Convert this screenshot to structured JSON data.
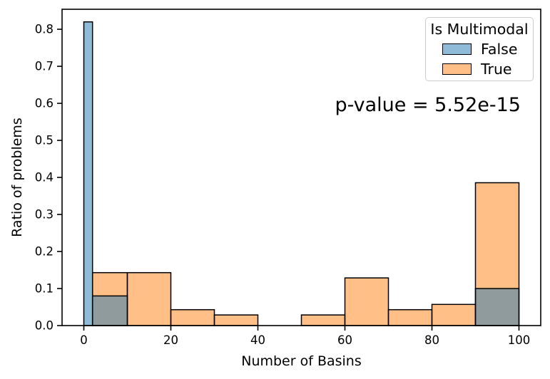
{
  "figure": {
    "ylabel": "Ratio of problems",
    "xlabel": "Number of Basins",
    "annotation": "p-value = 5.52e-15",
    "legend": {
      "title": "Is Multimodal",
      "entries": [
        {
          "label": "False",
          "color": "#8fbbd9"
        },
        {
          "label": "True",
          "color": "#ffbf86"
        }
      ]
    }
  },
  "chart_data": {
    "type": "bar",
    "subtype": "overlaid-histogram",
    "title": "",
    "xlabel": "Number of Basins",
    "ylabel": "Ratio of problems",
    "annotation": "p-value = 5.52e-15",
    "bin_edges": [
      0,
      2,
      10,
      20,
      30,
      40,
      50,
      60,
      70,
      80,
      90,
      100
    ],
    "series": [
      {
        "name": "False",
        "color_fill": "rgba(31,119,180,0.5)",
        "color_hex": "#8fbbd9",
        "values": [
          0.82,
          0.08,
          0,
          0,
          0,
          0,
          0,
          0,
          0,
          0,
          0.1
        ]
      },
      {
        "name": "True",
        "color_fill": "rgba(255,127,14,0.5)",
        "color_hex": "#ffbf86",
        "values": [
          0,
          0.1429,
          0.1429,
          0.0429,
          0.0286,
          0,
          0.0286,
          0.1286,
          0.0429,
          0.0571,
          0.3857
        ]
      }
    ],
    "overlap_color": "#8f9b9d",
    "bar_edge_color": "#000000",
    "xlim": [
      -5,
      105
    ],
    "ylim": [
      0,
      0.854
    ],
    "xticks": [
      0,
      20,
      40,
      60,
      80,
      100
    ],
    "xtick_labels": [
      "0",
      "20",
      "40",
      "60",
      "80",
      "100"
    ],
    "yticks": [
      0.0,
      0.1,
      0.2,
      0.3,
      0.4,
      0.5,
      0.6,
      0.7,
      0.8
    ],
    "ytick_labels": [
      "0.0",
      "0.1",
      "0.2",
      "0.3",
      "0.4",
      "0.5",
      "0.6",
      "0.7",
      "0.8"
    ],
    "legend": {
      "title": "Is Multimodal",
      "entries": [
        "False",
        "True"
      ],
      "position": "upper right"
    },
    "grid": false
  }
}
